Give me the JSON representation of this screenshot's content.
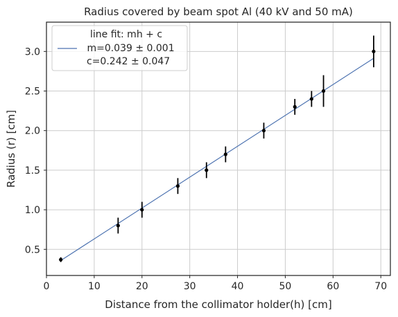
{
  "chart_data": {
    "type": "scatter",
    "title": "Radius covered by beam spot Al (40 kV and 50 mA)",
    "xlabel": "Distance from the  collimator holder(h) [cm]",
    "ylabel": "Radius (r) [cm]",
    "xlim": [
      0,
      72
    ],
    "ylim": [
      0.17,
      3.37
    ],
    "xticks": [
      0,
      10,
      20,
      30,
      40,
      50,
      60,
      70
    ],
    "yticks": [
      0.5,
      1.0,
      1.5,
      2.0,
      2.5,
      3.0
    ],
    "ytick_labels": [
      "0.5",
      "1.0",
      "1.5",
      "2.0",
      "2.5",
      "3.0"
    ],
    "grid": true,
    "legend_position": "top-left",
    "points": {
      "x": [
        3,
        15,
        20,
        27.5,
        33.5,
        37.5,
        45.5,
        52,
        55.5,
        58,
        68.5
      ],
      "y": [
        0.37,
        0.8,
        1.0,
        1.3,
        1.5,
        1.7,
        2.0,
        2.3,
        2.4,
        2.5,
        3.0
      ],
      "yerr": [
        0.03,
        0.1,
        0.1,
        0.1,
        0.1,
        0.1,
        0.1,
        0.1,
        0.1,
        0.2,
        0.2
      ],
      "color": "#000000"
    },
    "fit_line": {
      "slope": 0.039,
      "intercept": 0.242,
      "x_range": [
        3,
        68.5
      ],
      "color": "#4c72b0"
    },
    "legend": {
      "header": "line fit: mh + c",
      "entry_line1": " m=0.039 ± 0.001",
      "entry_line2": "c=0.242 ± 0.047"
    },
    "colors": {
      "grid": "#cccccc",
      "axis": "#262626"
    }
  }
}
